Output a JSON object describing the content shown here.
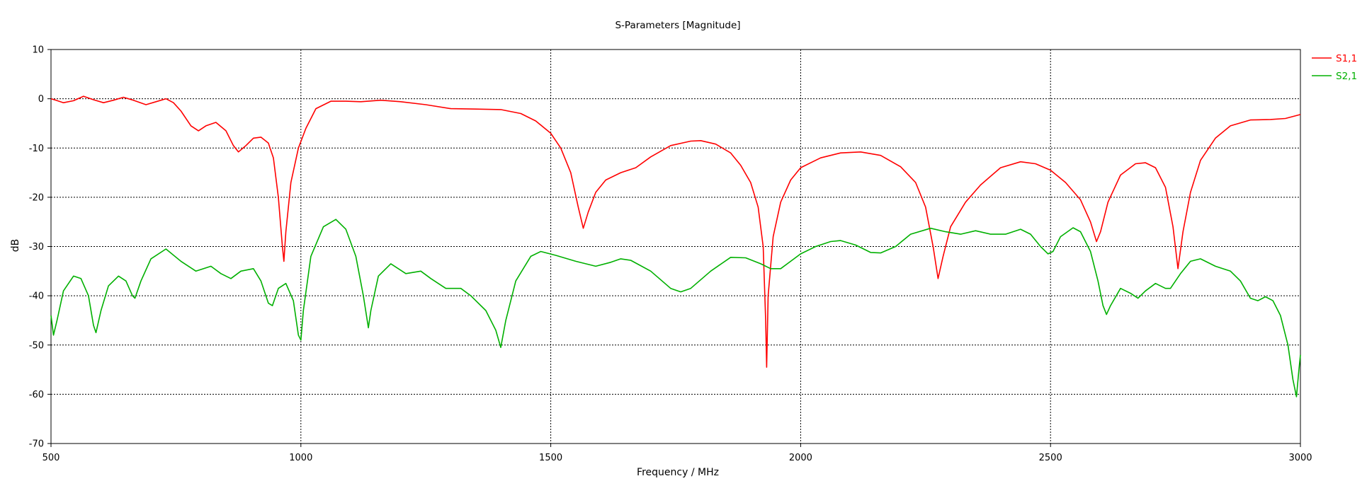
{
  "chart_data": {
    "type": "line",
    "title": "S-Parameters [Magnitude]",
    "xlabel": "Frequency / MHz",
    "ylabel": "dB",
    "xlim": [
      500,
      3000
    ],
    "ylim": [
      -70,
      10
    ],
    "x_ticks": [
      500,
      1000,
      1500,
      2000,
      2500,
      3000
    ],
    "y_ticks": [
      10,
      0,
      -10,
      -20,
      -30,
      -40,
      -50,
      -60,
      -70
    ],
    "grid": "dashed",
    "legend_position": "top-right",
    "series": [
      {
        "name": "S1,1",
        "color": "#ff0000",
        "points": [
          [
            500,
            0
          ],
          [
            510,
            -0.3
          ],
          [
            525,
            -0.8
          ],
          [
            545,
            -0.4
          ],
          [
            565,
            0.5
          ],
          [
            585,
            -0.2
          ],
          [
            605,
            -0.8
          ],
          [
            625,
            -0.3
          ],
          [
            645,
            0.3
          ],
          [
            665,
            -0.3
          ],
          [
            690,
            -1.2
          ],
          [
            710,
            -0.6
          ],
          [
            730,
            0
          ],
          [
            745,
            -0.8
          ],
          [
            760,
            -2.5
          ],
          [
            780,
            -5.5
          ],
          [
            795,
            -6.5
          ],
          [
            810,
            -5.5
          ],
          [
            830,
            -4.8
          ],
          [
            850,
            -6.5
          ],
          [
            865,
            -9.5
          ],
          [
            875,
            -10.8
          ],
          [
            890,
            -9.5
          ],
          [
            905,
            -8
          ],
          [
            920,
            -7.8
          ],
          [
            935,
            -9
          ],
          [
            945,
            -12
          ],
          [
            955,
            -20
          ],
          [
            963,
            -30
          ],
          [
            966,
            -33
          ],
          [
            970,
            -27
          ],
          [
            980,
            -17
          ],
          [
            995,
            -10
          ],
          [
            1010,
            -6
          ],
          [
            1030,
            -2
          ],
          [
            1060,
            -0.5
          ],
          [
            1090,
            -0.5
          ],
          [
            1120,
            -0.6
          ],
          [
            1160,
            -0.3
          ],
          [
            1200,
            -0.6
          ],
          [
            1250,
            -1.2
          ],
          [
            1300,
            -2
          ],
          [
            1350,
            -2.1
          ],
          [
            1400,
            -2.2
          ],
          [
            1440,
            -3
          ],
          [
            1470,
            -4.5
          ],
          [
            1500,
            -7
          ],
          [
            1520,
            -10
          ],
          [
            1540,
            -15
          ],
          [
            1555,
            -22
          ],
          [
            1565,
            -26.3
          ],
          [
            1575,
            -23
          ],
          [
            1590,
            -19
          ],
          [
            1610,
            -16.5
          ],
          [
            1640,
            -15
          ],
          [
            1670,
            -14
          ],
          [
            1700,
            -11.8
          ],
          [
            1740,
            -9.5
          ],
          [
            1780,
            -8.6
          ],
          [
            1800,
            -8.5
          ],
          [
            1830,
            -9.2
          ],
          [
            1860,
            -11
          ],
          [
            1880,
            -13.5
          ],
          [
            1900,
            -17
          ],
          [
            1915,
            -22
          ],
          [
            1925,
            -30
          ],
          [
            1930,
            -45
          ],
          [
            1932,
            -54.5
          ],
          [
            1935,
            -40
          ],
          [
            1945,
            -28
          ],
          [
            1960,
            -21
          ],
          [
            1980,
            -16.5
          ],
          [
            2000,
            -14
          ],
          [
            2040,
            -12
          ],
          [
            2080,
            -11
          ],
          [
            2120,
            -10.8
          ],
          [
            2160,
            -11.5
          ],
          [
            2200,
            -13.8
          ],
          [
            2230,
            -17
          ],
          [
            2250,
            -22
          ],
          [
            2265,
            -30
          ],
          [
            2275,
            -36.5
          ],
          [
            2285,
            -32
          ],
          [
            2300,
            -26
          ],
          [
            2330,
            -21
          ],
          [
            2360,
            -17.5
          ],
          [
            2400,
            -14
          ],
          [
            2440,
            -12.8
          ],
          [
            2470,
            -13.2
          ],
          [
            2500,
            -14.5
          ],
          [
            2530,
            -17
          ],
          [
            2560,
            -20.5
          ],
          [
            2580,
            -25
          ],
          [
            2592,
            -29
          ],
          [
            2600,
            -27
          ],
          [
            2615,
            -21
          ],
          [
            2640,
            -15.5
          ],
          [
            2670,
            -13.2
          ],
          [
            2690,
            -13
          ],
          [
            2710,
            -14
          ],
          [
            2730,
            -18
          ],
          [
            2745,
            -26
          ],
          [
            2755,
            -34.5
          ],
          [
            2765,
            -27
          ],
          [
            2780,
            -19
          ],
          [
            2800,
            -12.5
          ],
          [
            2830,
            -8
          ],
          [
            2860,
            -5.5
          ],
          [
            2900,
            -4.3
          ],
          [
            2940,
            -4.2
          ],
          [
            2970,
            -4
          ],
          [
            3000,
            -3.2
          ]
        ]
      },
      {
        "name": "S2,1",
        "color": "#00b000",
        "points": [
          [
            500,
            -44
          ],
          [
            505,
            -48
          ],
          [
            512,
            -45
          ],
          [
            525,
            -39
          ],
          [
            545,
            -36
          ],
          [
            560,
            -36.5
          ],
          [
            575,
            -40
          ],
          [
            585,
            -46
          ],
          [
            590,
            -47.5
          ],
          [
            600,
            -43
          ],
          [
            615,
            -38
          ],
          [
            635,
            -36
          ],
          [
            650,
            -37
          ],
          [
            663,
            -40
          ],
          [
            668,
            -40.5
          ],
          [
            680,
            -37
          ],
          [
            700,
            -32.5
          ],
          [
            730,
            -30.5
          ],
          [
            760,
            -33
          ],
          [
            790,
            -35
          ],
          [
            820,
            -34
          ],
          [
            840,
            -35.5
          ],
          [
            860,
            -36.5
          ],
          [
            880,
            -35
          ],
          [
            905,
            -34.5
          ],
          [
            920,
            -37
          ],
          [
            935,
            -41.5
          ],
          [
            943,
            -42
          ],
          [
            955,
            -38.5
          ],
          [
            970,
            -37.5
          ],
          [
            985,
            -41
          ],
          [
            995,
            -48
          ],
          [
            1000,
            -49
          ],
          [
            1005,
            -43
          ],
          [
            1020,
            -32
          ],
          [
            1045,
            -26
          ],
          [
            1070,
            -24.5
          ],
          [
            1090,
            -26.5
          ],
          [
            1110,
            -32
          ],
          [
            1125,
            -40
          ],
          [
            1135,
            -46.5
          ],
          [
            1140,
            -43
          ],
          [
            1155,
            -36
          ],
          [
            1180,
            -33.5
          ],
          [
            1210,
            -35.5
          ],
          [
            1240,
            -35
          ],
          [
            1260,
            -36.5
          ],
          [
            1290,
            -38.5
          ],
          [
            1320,
            -38.5
          ],
          [
            1340,
            -40
          ],
          [
            1370,
            -43
          ],
          [
            1390,
            -47
          ],
          [
            1400,
            -50.5
          ],
          [
            1410,
            -45
          ],
          [
            1430,
            -37
          ],
          [
            1460,
            -32
          ],
          [
            1480,
            -31
          ],
          [
            1510,
            -31.8
          ],
          [
            1550,
            -33
          ],
          [
            1590,
            -34
          ],
          [
            1620,
            -33.2
          ],
          [
            1640,
            -32.5
          ],
          [
            1660,
            -32.8
          ],
          [
            1700,
            -35
          ],
          [
            1740,
            -38.5
          ],
          [
            1760,
            -39.2
          ],
          [
            1780,
            -38.5
          ],
          [
            1820,
            -35
          ],
          [
            1860,
            -32.2
          ],
          [
            1890,
            -32.3
          ],
          [
            1920,
            -33.5
          ],
          [
            1940,
            -34.5
          ],
          [
            1960,
            -34.5
          ],
          [
            1980,
            -33
          ],
          [
            2000,
            -31.5
          ],
          [
            2030,
            -30
          ],
          [
            2060,
            -29
          ],
          [
            2080,
            -28.8
          ],
          [
            2110,
            -29.7
          ],
          [
            2140,
            -31.2
          ],
          [
            2160,
            -31.3
          ],
          [
            2190,
            -30
          ],
          [
            2220,
            -27.5
          ],
          [
            2260,
            -26.3
          ],
          [
            2290,
            -27
          ],
          [
            2320,
            -27.5
          ],
          [
            2350,
            -26.8
          ],
          [
            2380,
            -27.5
          ],
          [
            2410,
            -27.5
          ],
          [
            2440,
            -26.5
          ],
          [
            2460,
            -27.5
          ],
          [
            2480,
            -30
          ],
          [
            2495,
            -31.5
          ],
          [
            2505,
            -31
          ],
          [
            2520,
            -28
          ],
          [
            2545,
            -26.2
          ],
          [
            2560,
            -27
          ],
          [
            2580,
            -31
          ],
          [
            2595,
            -37
          ],
          [
            2605,
            -42
          ],
          [
            2612,
            -43.8
          ],
          [
            2620,
            -42
          ],
          [
            2640,
            -38.5
          ],
          [
            2660,
            -39.5
          ],
          [
            2675,
            -40.5
          ],
          [
            2690,
            -39
          ],
          [
            2710,
            -37.5
          ],
          [
            2730,
            -38.5
          ],
          [
            2740,
            -38.5
          ],
          [
            2760,
            -35.5
          ],
          [
            2780,
            -33
          ],
          [
            2800,
            -32.5
          ],
          [
            2830,
            -34
          ],
          [
            2860,
            -35
          ],
          [
            2880,
            -37
          ],
          [
            2900,
            -40.5
          ],
          [
            2915,
            -41
          ],
          [
            2930,
            -40.2
          ],
          [
            2945,
            -41
          ],
          [
            2960,
            -44
          ],
          [
            2975,
            -50
          ],
          [
            2985,
            -57
          ],
          [
            2992,
            -60.5
          ],
          [
            2997,
            -55
          ],
          [
            3000,
            -52
          ]
        ]
      }
    ]
  }
}
